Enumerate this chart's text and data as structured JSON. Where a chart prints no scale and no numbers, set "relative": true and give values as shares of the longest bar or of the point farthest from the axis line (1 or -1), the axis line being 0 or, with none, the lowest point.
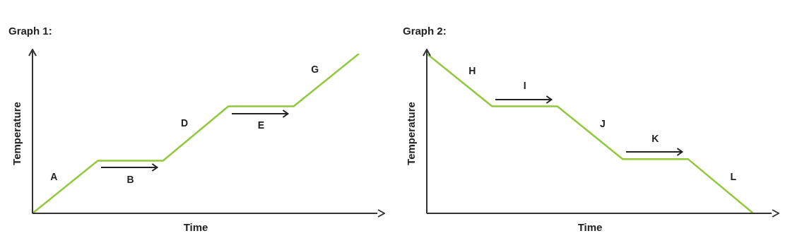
{
  "chart_data": [
    {
      "type": "line",
      "title": "Graph 1:",
      "xlabel": "Time",
      "ylabel": "Temperature",
      "relative": true,
      "categories": [
        null,
        null,
        null,
        null,
        null,
        null
      ],
      "series": [
        {
          "color": "#92c83e",
          "values": [
            0,
            0.33,
            0.33,
            0.67,
            0.67,
            1
          ]
        }
      ],
      "annotations": [
        "A",
        "B",
        "D",
        "E",
        "G"
      ],
      "marker": "none",
      "line_style": "solid",
      "legend": false,
      "grid": false
    },
    {
      "type": "line",
      "title": "Graph 2:",
      "xlabel": "Time",
      "ylabel": "Temperature",
      "relative": true,
      "categories": [
        null,
        null,
        null,
        null,
        null,
        null
      ],
      "series": [
        {
          "color": "#92c83e",
          "values": [
            1,
            0.67,
            0.67,
            0.34,
            0.34,
            0
          ]
        }
      ],
      "annotations": [
        "H",
        "I",
        "J",
        "K",
        "L"
      ],
      "marker": "none",
      "line_style": "solid",
      "legend": false,
      "grid": false
    }
  ]
}
